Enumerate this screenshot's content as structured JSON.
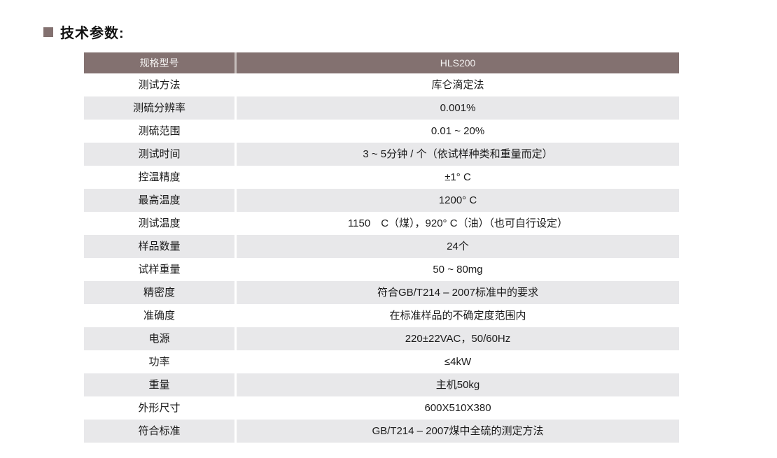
{
  "title": {
    "text": "技术参数:",
    "bullet_icon": "square-bullet-icon"
  },
  "colors": {
    "header_bg": "#837170",
    "header_text": "#f2f0ef",
    "alt_row_bg": "#e8e8ea",
    "body_text": "#1a1a1a",
    "title_square": "#837170",
    "header_divider": "#c6bebc",
    "row_divider": "#ffffff"
  },
  "table": {
    "header": {
      "col1": "规格型号",
      "col2": "HLS200"
    },
    "rows": [
      {
        "label": "测试方法",
        "value": "库仑滴定法"
      },
      {
        "label": "测硫分辨率",
        "value": "0.001%"
      },
      {
        "label": "测硫范围",
        "value": "0.01 ~ 20%"
      },
      {
        "label": "测试时间",
        "value": "3 ~ 5分钟 / 个（依试样种类和重量而定）"
      },
      {
        "label": "控温精度",
        "value": "±1° C"
      },
      {
        "label": "最高温度",
        "value": "1200° C"
      },
      {
        "label": "测试温度",
        "value": "1150　C（煤），920° C（油）（也可自行设定）"
      },
      {
        "label": "样品数量",
        "value": "24个"
      },
      {
        "label": "试样重量",
        "value": "50 ~ 80mg"
      },
      {
        "label": "精密度",
        "value": "符合GB/T214 – 2007标准中的要求"
      },
      {
        "label": "准确度",
        "value": "在标准样品的不确定度范围内"
      },
      {
        "label": "电源",
        "value": "220±22VAC，50/60Hz"
      },
      {
        "label": "功率",
        "value": "≤4kW"
      },
      {
        "label": "重量",
        "value": "主机50kg"
      },
      {
        "label": "外形尺寸",
        "value": "600X510X380"
      },
      {
        "label": "符合标准",
        "value": "GB/T214 – 2007煤中全硫的测定方法"
      }
    ]
  }
}
